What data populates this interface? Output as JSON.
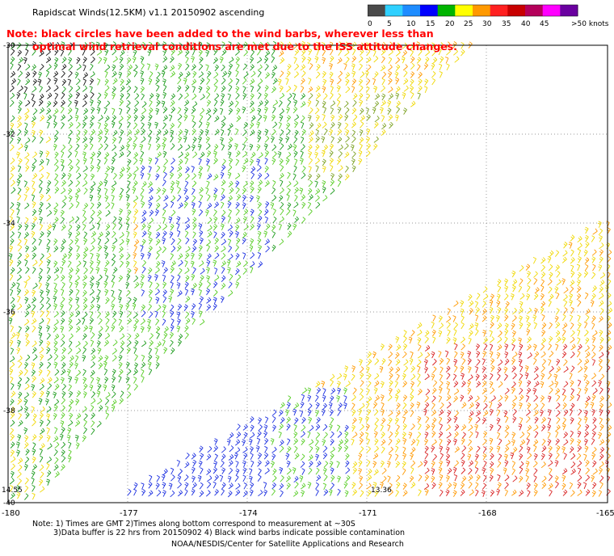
{
  "title": "Rapidscat Winds(12.5KM) v1.1 20150902 ascending",
  "note_line1": "Note: black circles have been added to the wind barbs, wherever less than",
  "note_line2": "optimal wind retrieval conditions are met due to the ISS attitude changes.",
  "colorbar": {
    "labels": [
      "0",
      "5",
      "10",
      "15",
      "20",
      "25",
      "30",
      "35",
      "40",
      "45",
      ">50 knots"
    ],
    "colors": [
      "#4a4a4a",
      "#2fd0ff",
      "#1e8cff",
      "#0000ff",
      "#00b400",
      "#ffff00",
      "#ff9900",
      "#ff2020",
      "#c80000",
      "#b4005a",
      "#ff00ff",
      "#6a00a0"
    ]
  },
  "lat_labels": [
    "-30",
    "-32",
    "-34",
    "-36",
    "-38",
    "-40"
  ],
  "lon_labels": [
    "-180",
    "-177",
    "-174",
    "-171",
    "-168",
    "-165"
  ],
  "time_labels": [
    "14.55",
    "13.36"
  ],
  "footer_line1": "Note: 1) Times are GMT 2)Times along bottom correspond to measurement at ~30S",
  "footer_line2": "3)Data buffer is 22 hrs from 20150902 4) Black wind barbs indicate possible contamination",
  "footer_line3": "NOAA/NESDIS/Center for Satellite Applications and Research",
  "swaths": [
    {
      "name": "upper-swath",
      "regions": [
        "black",
        "green",
        "lightgreen",
        "yellow",
        "orange",
        "blue"
      ]
    },
    {
      "name": "lower-swath",
      "regions": [
        "blue",
        "green",
        "yellow",
        "orange",
        "red"
      ]
    }
  ]
}
